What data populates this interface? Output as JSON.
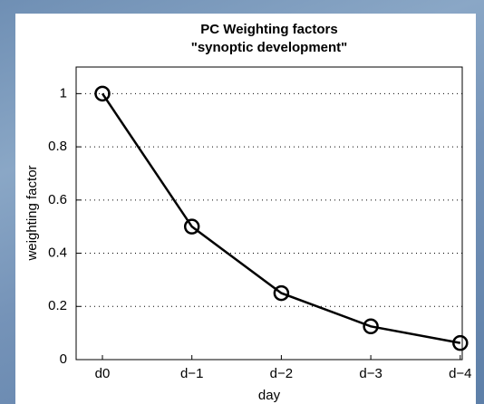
{
  "chart_data": {
    "type": "line",
    "title": [
      "PC Weighting factors",
      "\"synoptic development\""
    ],
    "xlabel": "day",
    "ylabel": "weighting factor",
    "categories": [
      "d0",
      "d−1",
      "d−2",
      "d−3",
      "d−4"
    ],
    "values": [
      1,
      0.5,
      0.25,
      0.125,
      0.0625
    ],
    "color": "#000000",
    "ylim": [
      0,
      1.1
    ],
    "yticks": [
      0,
      0.2,
      0.4,
      0.6,
      0.8,
      1
    ],
    "grid": true,
    "marker": "circle"
  }
}
